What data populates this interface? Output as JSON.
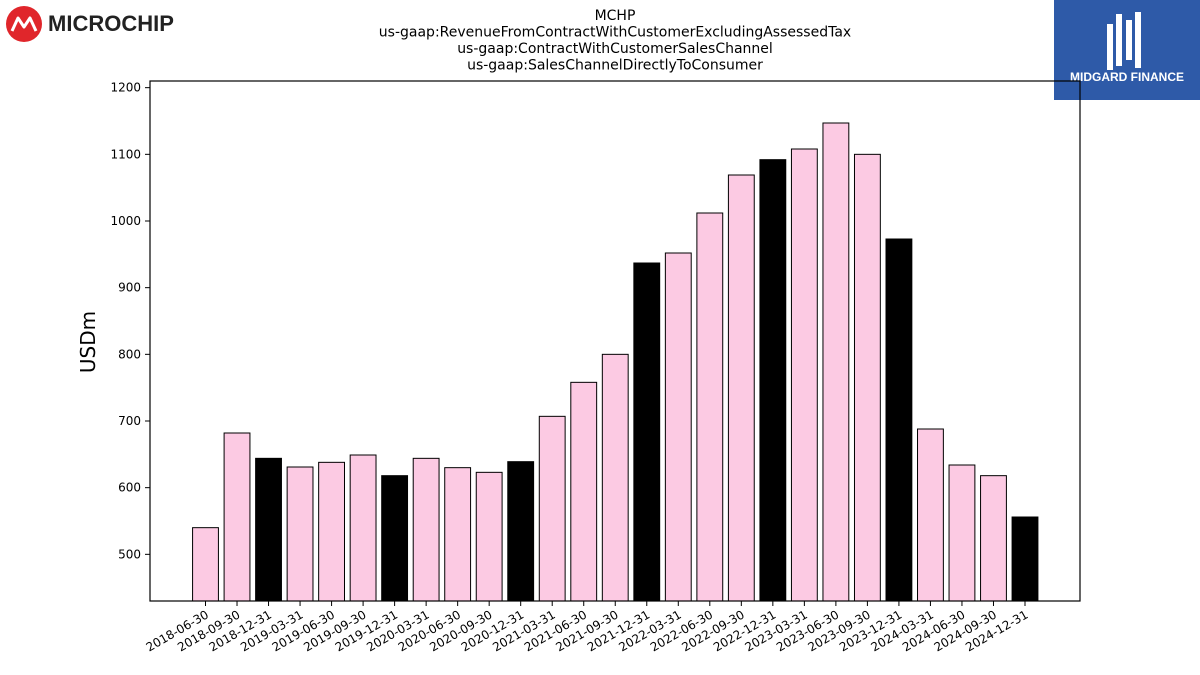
{
  "logos": {
    "left_text": "MICROCHIP",
    "right_text": "MIDGARD FINANCE"
  },
  "colors": {
    "bar_regular": "#fccae3",
    "bar_highlight": "#000000",
    "bar_edge": "#000000",
    "brand_red": "#e0262b",
    "midgard_blue": "#2e5aa8"
  },
  "chart_data": {
    "type": "bar",
    "title_lines": [
      "MCHP",
      "us-gaap:RevenueFromContractWithCustomerExcludingAssessedTax",
      "us-gaap:ContractWithCustomerSalesChannel",
      "us-gaap:SalesChannelDirectlyToConsumer"
    ],
    "xlabel": "",
    "ylabel": "USDm",
    "ylim": [
      430,
      1210
    ],
    "yticks": [
      500,
      600,
      700,
      800,
      900,
      1000,
      1100,
      1200
    ],
    "grid": false,
    "legend": "none",
    "categories": [
      "2018-06-30",
      "2018-09-30",
      "2018-12-31",
      "2019-03-31",
      "2019-06-30",
      "2019-09-30",
      "2019-12-31",
      "2020-03-31",
      "2020-06-30",
      "2020-09-30",
      "2020-12-31",
      "2021-03-31",
      "2021-06-30",
      "2021-09-30",
      "2021-12-31",
      "2022-03-31",
      "2022-06-30",
      "2022-09-30",
      "2022-12-31",
      "2023-03-31",
      "2023-06-30",
      "2023-09-30",
      "2023-12-31",
      "2024-03-31",
      "2024-06-30",
      "2024-09-30",
      "2024-12-31"
    ],
    "values": [
      540,
      682,
      644,
      631,
      638,
      649,
      618,
      644,
      630,
      623,
      639,
      707,
      758,
      800,
      937,
      952,
      1012,
      1069,
      1092,
      1108,
      1147,
      1100,
      973,
      688,
      634,
      618,
      556
    ],
    "highlight": [
      false,
      false,
      true,
      false,
      false,
      false,
      true,
      false,
      false,
      false,
      true,
      false,
      false,
      false,
      true,
      false,
      false,
      false,
      true,
      false,
      false,
      false,
      true,
      false,
      false,
      false,
      true
    ]
  }
}
